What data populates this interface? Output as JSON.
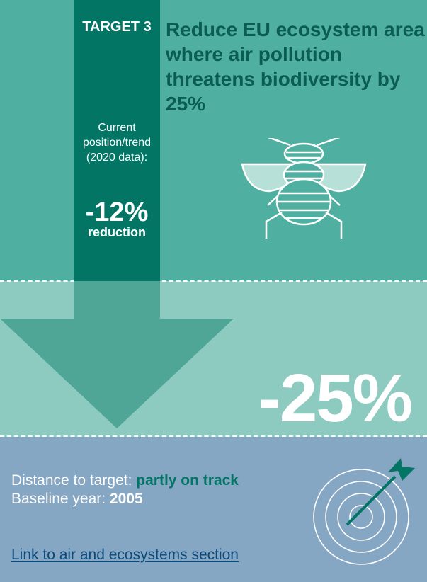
{
  "target_label": "TARGET 3",
  "title": "Reduce EU ecosystem area where air pollution threatens biodiversity by 25%",
  "current": {
    "line1": "Current",
    "line2": "position/trend",
    "line3": "(2020 data):",
    "value": "-12%",
    "unit": "reduction"
  },
  "goal_value": "-25%",
  "distance": {
    "label": "Distance to target: ",
    "value": "partly on track"
  },
  "baseline": {
    "label": "Baseline year: ",
    "value": "2005"
  },
  "link_text": "Link to air and ecosystems section",
  "icons": {
    "bee": "bee-icon",
    "target": "dartboard-target-icon",
    "arrow": "down-arrow-icon"
  },
  "colors": {
    "teal": "#4fb0a1",
    "light_teal": "#8dcbc1",
    "dark_teal": "#037565",
    "blue_grey": "#86a7c4",
    "link": "#0b4a7a"
  }
}
